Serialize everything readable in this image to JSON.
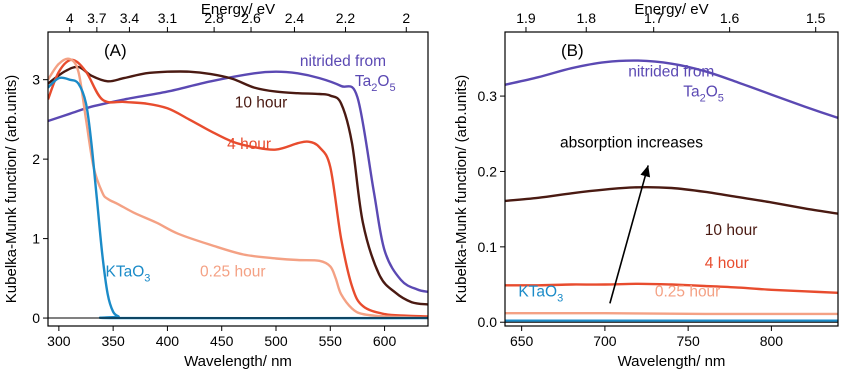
{
  "chart_data": [
    {
      "type": "line",
      "panel_label": "(A)",
      "xlabel": "Wavelength/ nm",
      "ylabel": "Kubelka-Munk function/ (arb.units)",
      "top_axis_label": "Energy/ eV",
      "xlim": [
        290,
        640
      ],
      "ylim": [
        -0.1,
        3.6
      ],
      "x_ticks": [
        300,
        350,
        400,
        450,
        500,
        550,
        600
      ],
      "y_ticks": [
        0,
        1,
        2,
        3
      ],
      "top_ticks": [
        {
          "label": "4",
          "nm": 310
        },
        {
          "label": "3.7",
          "nm": 335
        },
        {
          "label": "3.4",
          "nm": 365
        },
        {
          "label": "3.1",
          "nm": 400
        },
        {
          "label": "2.8",
          "nm": 443
        },
        {
          "label": "2.6",
          "nm": 477
        },
        {
          "label": "2.4",
          "nm": 517
        },
        {
          "label": "2.2",
          "nm": 564
        },
        {
          "label": "2",
          "nm": 620
        }
      ],
      "series": [
        {
          "name": "nitrided from",
          "name_formula": {
            "base": "Ta",
            "sub1": "2",
            "mid": "O",
            "sub2": "5"
          },
          "color": "#5B49B3",
          "x": [
            290,
            310,
            330,
            360,
            400,
            440,
            480,
            500,
            520,
            540,
            560,
            575,
            590,
            600,
            615,
            630,
            640
          ],
          "y": [
            2.48,
            2.57,
            2.66,
            2.75,
            2.85,
            2.98,
            3.08,
            3.1,
            3.08,
            3.02,
            2.92,
            2.78,
            1.6,
            0.85,
            0.48,
            0.36,
            0.33
          ]
        },
        {
          "name": "10 hour",
          "color": "#4A1A12",
          "x": [
            290,
            305,
            318,
            330,
            345,
            360,
            380,
            400,
            420,
            440,
            460,
            480,
            500,
            520,
            540,
            550,
            560,
            570,
            580,
            595,
            610,
            625,
            640
          ],
          "y": [
            2.95,
            3.1,
            3.16,
            3.05,
            2.98,
            3.02,
            3.08,
            3.1,
            3.1,
            3.07,
            3.01,
            2.9,
            2.85,
            2.83,
            2.82,
            2.8,
            2.7,
            2.2,
            1.2,
            0.55,
            0.32,
            0.2,
            0.17
          ]
        },
        {
          "name": "4 hour",
          "color": "#E84C2E",
          "x": [
            290,
            300,
            312,
            325,
            340,
            360,
            380,
            400,
            420,
            440,
            460,
            480,
            500,
            520,
            530,
            540,
            550,
            560,
            570,
            580,
            600,
            620,
            640
          ],
          "y": [
            2.75,
            3.1,
            3.25,
            3.1,
            2.75,
            2.72,
            2.7,
            2.64,
            2.5,
            2.35,
            2.22,
            2.15,
            2.12,
            2.2,
            2.22,
            2.15,
            1.9,
            1.0,
            0.4,
            0.15,
            0.05,
            0.03,
            0.02
          ]
        },
        {
          "name": "0.25 hour",
          "color": "#F4A184",
          "x": [
            290,
            300,
            310,
            318,
            325,
            332,
            340,
            345,
            355,
            370,
            390,
            410,
            440,
            470,
            500,
            520,
            540,
            550,
            555,
            560,
            570,
            580,
            600,
            640
          ],
          "y": [
            3.0,
            3.2,
            3.26,
            3.1,
            2.5,
            1.9,
            1.58,
            1.5,
            1.43,
            1.32,
            1.2,
            1.06,
            0.92,
            0.8,
            0.75,
            0.73,
            0.72,
            0.65,
            0.5,
            0.3,
            0.12,
            0.05,
            0.02,
            0.0
          ]
        },
        {
          "name": "KTaO",
          "name_sub": "3",
          "color": "#1B8BC8",
          "x": [
            290,
            300,
            310,
            318,
            325,
            330,
            335,
            340,
            345,
            350,
            355,
            360,
            640
          ],
          "y": [
            2.9,
            3.02,
            3.0,
            2.95,
            2.7,
            2.2,
            1.5,
            0.8,
            0.3,
            0.08,
            0.02,
            0.0,
            0.0
          ]
        }
      ],
      "labels": [
        {
          "series": "nitrided from",
          "x": 522,
          "y": 3.17
        },
        {
          "series": "10 hour",
          "x": 462,
          "y": 2.65
        },
        {
          "series": "4 hour",
          "x": 455,
          "y": 2.13
        },
        {
          "series": "0.25 hour",
          "x": 430,
          "y": 0.52
        },
        {
          "series": "KTaO",
          "x": 343,
          "y": 0.52
        }
      ]
    },
    {
      "type": "line",
      "panel_label": "(B)",
      "xlabel": "Wavelength/ nm",
      "ylabel": "Kubelka-Munk function/ (arb.units)",
      "top_axis_label": "Energy/ eV",
      "xlim": [
        640,
        840
      ],
      "ylim": [
        -0.005,
        0.385
      ],
      "x_ticks": [
        650,
        700,
        750,
        800
      ],
      "y_ticks": [
        0.0,
        0.1,
        0.2,
        0.3
      ],
      "y_tick_labels": [
        "0.0",
        "0.1",
        "0.2",
        "0.3"
      ],
      "top_ticks": [
        {
          "label": "1.9",
          "nm": 652.6
        },
        {
          "label": "1.8",
          "nm": 688.8
        },
        {
          "label": "1.7",
          "nm": 729.3
        },
        {
          "label": "1.6",
          "nm": 774.9
        },
        {
          "label": "1.5",
          "nm": 826.6
        }
      ],
      "series": [
        {
          "name": "nitrided from",
          "name_formula": {
            "base": "Ta",
            "sub1": "2",
            "mid": "O",
            "sub2": "5"
          },
          "color": "#5B49B3",
          "x": [
            640,
            660,
            680,
            700,
            720,
            740,
            760,
            780,
            800,
            820,
            840
          ],
          "y": [
            0.315,
            0.325,
            0.337,
            0.345,
            0.347,
            0.343,
            0.333,
            0.318,
            0.302,
            0.286,
            0.271
          ]
        },
        {
          "name": "10 hour",
          "color": "#4A1A12",
          "x": [
            640,
            660,
            680,
            700,
            720,
            740,
            760,
            780,
            800,
            820,
            840
          ],
          "y": [
            0.161,
            0.165,
            0.171,
            0.176,
            0.179,
            0.178,
            0.173,
            0.166,
            0.159,
            0.151,
            0.144
          ]
        },
        {
          "name": "4 hour",
          "color": "#E84C2E",
          "x": [
            640,
            660,
            680,
            700,
            720,
            740,
            760,
            780,
            800,
            820,
            840
          ],
          "y": [
            0.049,
            0.049,
            0.05,
            0.05,
            0.051,
            0.05,
            0.048,
            0.046,
            0.043,
            0.041,
            0.039
          ]
        },
        {
          "name": "0.25 hour",
          "color": "#F4A184",
          "x": [
            640,
            700,
            760,
            840
          ],
          "y": [
            0.012,
            0.012,
            0.011,
            0.011
          ]
        },
        {
          "name": "KTaO",
          "name_sub": "3",
          "color": "#1B8BC8",
          "x": [
            640,
            840
          ],
          "y": [
            0.002,
            0.002
          ]
        }
      ],
      "labels": [
        {
          "series": "nitrided from",
          "x": 714,
          "y": 0.326
        },
        {
          "series": "10 hour",
          "x": 760,
          "y": 0.116
        },
        {
          "series": "4 hour",
          "x": 760,
          "y": 0.072
        },
        {
          "series": "0.25 hour",
          "x": 730,
          "y": 0.034
        },
        {
          "series": "KTaO",
          "x": 648,
          "y": 0.034
        }
      ],
      "annotation": {
        "text": "absorption increases",
        "arrow_from": [
          703,
          0.025
        ],
        "arrow_to": [
          726,
          0.208
        ],
        "text_x": 716,
        "text_y": 0.232
      }
    }
  ]
}
